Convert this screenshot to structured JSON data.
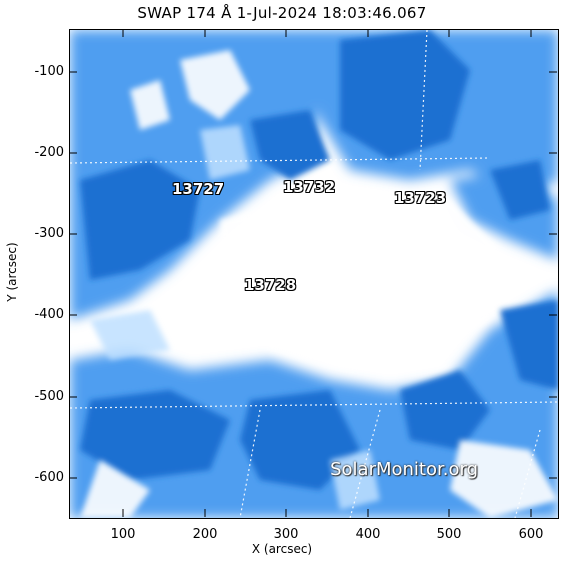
{
  "title": "SWAP 174 Å   1-Jul-2024  18:03:46.067",
  "axes": {
    "xlabel": "X (arcsec)",
    "ylabel": "Y (arcsec)",
    "x_ticks": [
      "100",
      "200",
      "300",
      "400",
      "500",
      "600"
    ],
    "y_ticks": [
      "-100",
      "-200",
      "-300",
      "-400",
      "-500",
      "-600"
    ]
  },
  "active_regions": [
    {
      "id": "13727"
    },
    {
      "id": "13732"
    },
    {
      "id": "13723"
    },
    {
      "id": "13728"
    }
  ],
  "watermark": "SolarMonitor.org",
  "colors": {
    "dark_blue": "#1a6fd1",
    "mid_blue": "#4f9ef0",
    "light_blue": "#bfe0ff",
    "background": "#ffffff"
  }
}
